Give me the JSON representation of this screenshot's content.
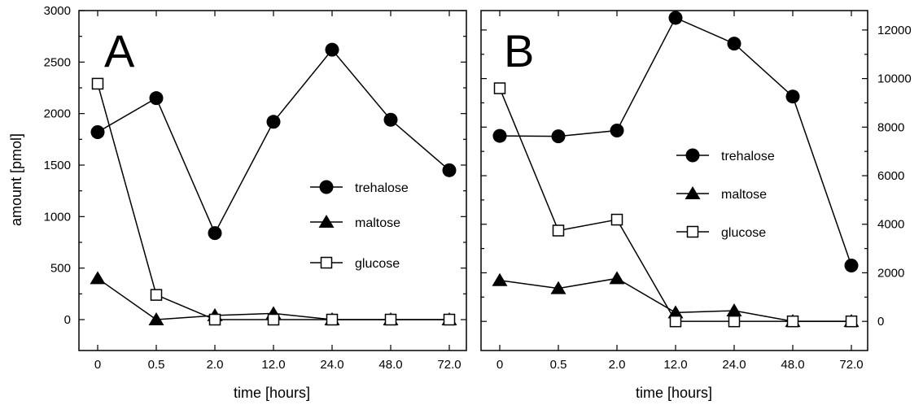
{
  "figure": {
    "ylabel": "amount [pmol]",
    "xlabel": "time [hours]"
  },
  "chart_data": [
    {
      "type": "line",
      "panel_label": "A",
      "categories": [
        "0",
        "0.5",
        "2.0",
        "12.0",
        "24.0",
        "48.0",
        "72.0"
      ],
      "xlabel": "time [hours]",
      "ylabel": "amount [pmol]",
      "ylim": [
        -300,
        3000
      ],
      "yticks": [
        0,
        500,
        1000,
        1500,
        2000,
        2500,
        3000
      ],
      "y_axis_side": "left",
      "grid": false,
      "legend_position": "center-right",
      "series": [
        {
          "name": "trehalose",
          "marker": "filled-circle",
          "values": [
            1820,
            2150,
            840,
            1920,
            2620,
            1940,
            1450
          ]
        },
        {
          "name": "maltose",
          "marker": "filled-triangle",
          "values": [
            400,
            0,
            40,
            60,
            0,
            0,
            0
          ]
        },
        {
          "name": "glucose",
          "marker": "open-square",
          "values": [
            2290,
            240,
            0,
            0,
            0,
            0,
            0
          ]
        }
      ]
    },
    {
      "type": "line",
      "panel_label": "B",
      "categories": [
        "0",
        "0.5",
        "2.0",
        "12.0",
        "24.0",
        "48.0",
        "72.0"
      ],
      "xlabel": "time [hours]",
      "ylabel": "",
      "ylim": [
        -1200,
        12800
      ],
      "yticks": [
        0,
        2000,
        4000,
        6000,
        8000,
        10000,
        12000
      ],
      "y_axis_side": "right",
      "grid": false,
      "legend_position": "center-right",
      "series": [
        {
          "name": "trehalose",
          "marker": "filled-circle",
          "values": [
            7640,
            7620,
            7860,
            12500,
            11440,
            9260,
            2300
          ]
        },
        {
          "name": "maltose",
          "marker": "filled-triangle",
          "values": [
            1690,
            1360,
            1770,
            360,
            440,
            0,
            0
          ]
        },
        {
          "name": "glucose",
          "marker": "open-square",
          "values": [
            9600,
            3740,
            4190,
            0,
            0,
            0,
            0
          ]
        }
      ]
    }
  ]
}
